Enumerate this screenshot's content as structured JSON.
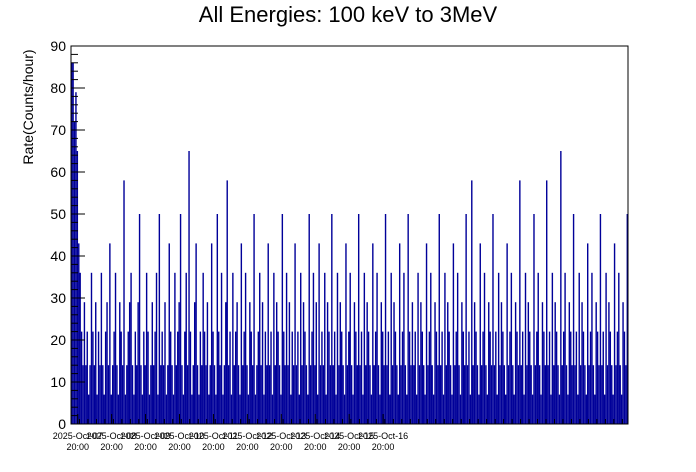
{
  "chart_data": {
    "type": "histogram",
    "title": "All Energies:  100 keV to 3MeV",
    "xlabel": "",
    "ylabel": "Rate(Counts/hour)",
    "ylim": [
      0,
      90
    ],
    "yticks": [
      0,
      10,
      20,
      30,
      40,
      50,
      60,
      70,
      80,
      90
    ],
    "x_tick_labels": [
      [
        "2025-Oct-07",
        "20:00"
      ],
      [
        "2025-Oct-08",
        "20:00"
      ],
      [
        "2025-Oct-09",
        "20:00"
      ],
      [
        "2025-Oct-10",
        "20:00"
      ],
      [
        "2025-Oct-11",
        "20:00"
      ],
      [
        "2025-Oct-12",
        "20:00"
      ],
      [
        "2025-Oct-13",
        "20:00"
      ],
      [
        "2025-Oct-14",
        "20:00"
      ],
      [
        "2025-Oct-15",
        "20:00"
      ],
      [
        "2025-Oct-16",
        "20:00"
      ]
    ],
    "bin_width_hours": 1,
    "series": [
      {
        "color": "#000099",
        "values": [
          86,
          86,
          72,
          79,
          65,
          43,
          36,
          22,
          14,
          29,
          14,
          22,
          7,
          14,
          36,
          22,
          14,
          29,
          7,
          22,
          14,
          36,
          14,
          7,
          22,
          29,
          14,
          43,
          7,
          14,
          22,
          36,
          14,
          7,
          29,
          22,
          14,
          58,
          7,
          14,
          22,
          29,
          36,
          14,
          7,
          22,
          14,
          29,
          50,
          14,
          7,
          22,
          14,
          36,
          22,
          7,
          14,
          29,
          14,
          22,
          36,
          7,
          50,
          14,
          22,
          14,
          29,
          7,
          14,
          43,
          22,
          14,
          7,
          36,
          14,
          22,
          29,
          50,
          14,
          7,
          22,
          36,
          14,
          65,
          22,
          7,
          14,
          29,
          43,
          14,
          7,
          22,
          14,
          36,
          22,
          14,
          29,
          7,
          14,
          43,
          22,
          14,
          7,
          50,
          22,
          14,
          36,
          7,
          14,
          29,
          58,
          14,
          22,
          7,
          36,
          14,
          22,
          29,
          14,
          7,
          43,
          14,
          22,
          36,
          14,
          7,
          29,
          22,
          14,
          50,
          7,
          14,
          22,
          36,
          14,
          29,
          7,
          22,
          14,
          43,
          14,
          22,
          7,
          36,
          14,
          29,
          22,
          14,
          7,
          50,
          22,
          14,
          36,
          14,
          29,
          7,
          22,
          14,
          43,
          14,
          22,
          7,
          36,
          14,
          29,
          22,
          14,
          7,
          50,
          14,
          22,
          36,
          14,
          29,
          7,
          43,
          14,
          22,
          14,
          36,
          7,
          29,
          22,
          14,
          50,
          14,
          22,
          7,
          36,
          14,
          29,
          22,
          14,
          7,
          43,
          14,
          22,
          36,
          14,
          7,
          29,
          22,
          14,
          50,
          14,
          22,
          7,
          36,
          14,
          29,
          22,
          14,
          7,
          43,
          14,
          22,
          36,
          14,
          7,
          29,
          22,
          14,
          50,
          14,
          22,
          7,
          36,
          14,
          29,
          22,
          14,
          7,
          43,
          14,
          22,
          36,
          14,
          7,
          50,
          22,
          14,
          29,
          14,
          22,
          7,
          36,
          14,
          29,
          22,
          14,
          7,
          43,
          14,
          22,
          36,
          14,
          7,
          29,
          22,
          14,
          50,
          14,
          22,
          7,
          36,
          14,
          29,
          22,
          14,
          7,
          43,
          14,
          22,
          36,
          14,
          7,
          29,
          22,
          14,
          50,
          14,
          22,
          7,
          58,
          14,
          29,
          22,
          14,
          7,
          43,
          14,
          22,
          36,
          14,
          7,
          29,
          22,
          14,
          50,
          14,
          22,
          7,
          36,
          14,
          29,
          22,
          14,
          7,
          43,
          14,
          22,
          36,
          14,
          7,
          29,
          22,
          14,
          58,
          14,
          22,
          7,
          36,
          14,
          29,
          22,
          14,
          7,
          50,
          14,
          22,
          36,
          14,
          7,
          29,
          22,
          14,
          58,
          14,
          22,
          7,
          36,
          14,
          29,
          22,
          14,
          7,
          65,
          14,
          22,
          36,
          14,
          7,
          29,
          22,
          14,
          50,
          14,
          22,
          7,
          36,
          14,
          29,
          22,
          14,
          7,
          43,
          14,
          22,
          36,
          14,
          7,
          29,
          22,
          14,
          50,
          14,
          22,
          7,
          36,
          14,
          29,
          22,
          14,
          7,
          43,
          14,
          22,
          36,
          14,
          7,
          29,
          22,
          14,
          50
        ]
      }
    ],
    "grid": false,
    "legend": "none"
  }
}
